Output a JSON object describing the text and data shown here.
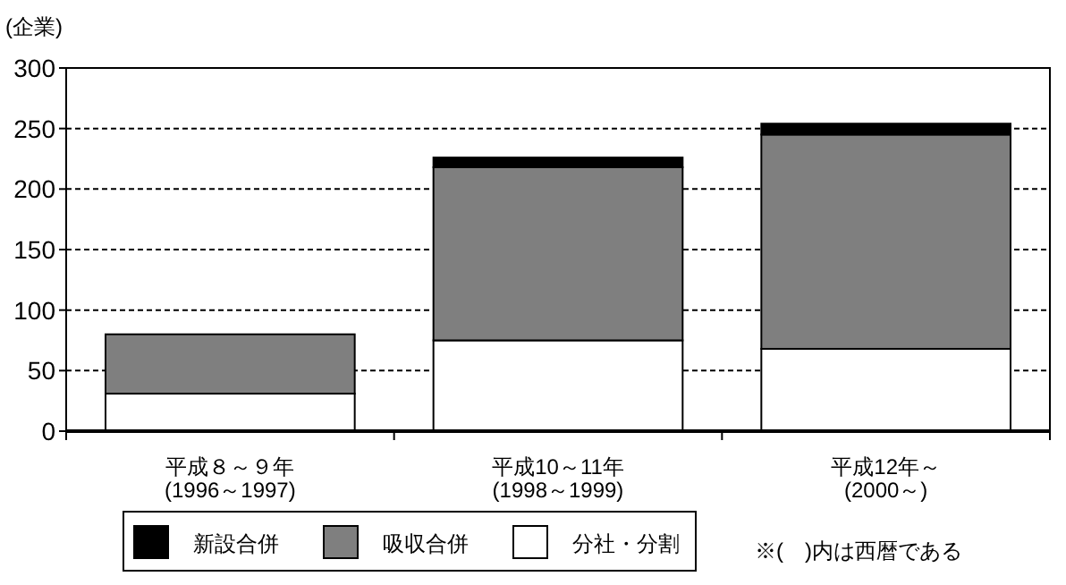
{
  "chart_data": {
    "type": "bar",
    "stacked": true,
    "ylabel": "(企業)",
    "categories": [
      "平成８～９年\n(1996～1997)",
      "平成10～11年\n(1998～1999)",
      "平成12年～\n(2000～)"
    ],
    "series": [
      {
        "name": "分社・分割",
        "color": "#ffffff",
        "values": [
          31,
          75,
          68
        ]
      },
      {
        "name": "吸収合併",
        "color": "#7f7f7f",
        "values": [
          49,
          143,
          177
        ]
      },
      {
        "name": "新設合併",
        "color": "#000000",
        "values": [
          0,
          8,
          9
        ]
      }
    ],
    "ylim": [
      0,
      300
    ],
    "yticks": [
      0,
      50,
      100,
      150,
      200,
      250,
      300
    ],
    "grid": "y",
    "legend": "bottom",
    "annotations": [
      "※(　)内は西暦である"
    ]
  }
}
